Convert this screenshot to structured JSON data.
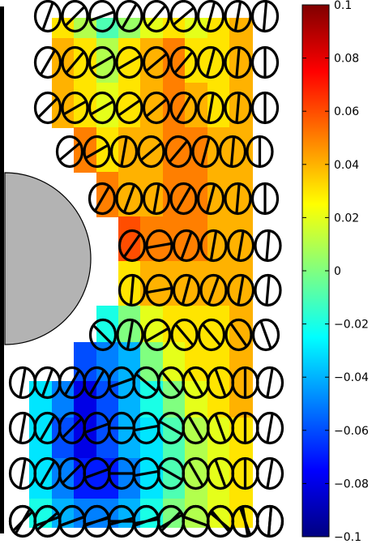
{
  "chart_data": {
    "type": "heatmap",
    "title": "",
    "xlabel": "",
    "ylabel": "",
    "colormap": "jet",
    "colorbar": {
      "min": -0.1,
      "max": 0.1,
      "ticks": [
        0.1,
        0.08,
        0.06,
        0.04,
        0.02,
        0,
        -0.02,
        -0.04,
        -0.06,
        -0.08,
        -0.1
      ],
      "tick_labels": [
        "0.1",
        "0.08",
        "0.06",
        "0.04",
        "0.02",
        "0",
        "−0.02",
        "−0.04",
        "−0.06",
        "−0.08",
        "−0.1"
      ],
      "placement": "right"
    },
    "field_columns": [
      "c1",
      "c2",
      "c3",
      "c4",
      "c5",
      "c6",
      "c7",
      "c8",
      "c9",
      "c10",
      "c11"
    ],
    "field_rows": [
      {
        "row": 1,
        "values": [
          null,
          null,
          0.03,
          0.01,
          -0.01,
          0.005,
          0.02,
          0.03,
          0.02,
          0.03,
          0.04
        ]
      },
      {
        "row": 2,
        "values": [
          null,
          null,
          0.04,
          0.03,
          0.01,
          0.03,
          0.04,
          0.05,
          0.03,
          0.03,
          0.04
        ]
      },
      {
        "row": 3,
        "values": [
          null,
          null,
          0.04,
          0.03,
          0.02,
          0.03,
          0.04,
          0.05,
          0.04,
          0.03,
          0.04
        ]
      },
      {
        "row": 4,
        "values": [
          null,
          null,
          null,
          0.05,
          0.03,
          0.04,
          0.04,
          0.05,
          0.05,
          0.04,
          0.04
        ]
      },
      {
        "row": 5,
        "values": [
          null,
          null,
          null,
          null,
          0.05,
          0.04,
          0.04,
          0.05,
          0.05,
          0.04,
          0.04
        ]
      },
      {
        "row": 6,
        "values": [
          null,
          null,
          null,
          null,
          null,
          0.06,
          0.05,
          0.05,
          0.05,
          0.04,
          0.04
        ]
      },
      {
        "row": 7,
        "values": [
          null,
          null,
          null,
          null,
          null,
          0.03,
          0.04,
          0.04,
          0.04,
          0.04,
          0.04
        ]
      },
      {
        "row": 8,
        "values": [
          null,
          null,
          null,
          null,
          -0.02,
          0.0,
          0.02,
          0.03,
          0.03,
          0.03,
          0.04
        ]
      },
      {
        "row": 9,
        "values": [
          null,
          null,
          null,
          -0.06,
          -0.05,
          -0.04,
          0.0,
          0.02,
          0.03,
          0.03,
          0.04
        ]
      },
      {
        "row": 10,
        "values": [
          null,
          -0.03,
          -0.05,
          -0.08,
          -0.06,
          -0.04,
          -0.02,
          0.0,
          0.02,
          0.03,
          0.04
        ]
      },
      {
        "row": 11,
        "values": [
          null,
          -0.03,
          -0.06,
          -0.08,
          -0.06,
          -0.04,
          -0.03,
          -0.01,
          0.01,
          0.02,
          0.03
        ]
      },
      {
        "row": 12,
        "values": [
          null,
          -0.03,
          -0.05,
          -0.07,
          -0.07,
          -0.05,
          -0.03,
          -0.01,
          0.01,
          0.02,
          0.03
        ]
      },
      {
        "row": 13,
        "values": [
          null,
          -0.02,
          -0.04,
          -0.05,
          -0.05,
          -0.04,
          -0.02,
          0.0,
          0.01,
          0.02,
          0.03
        ]
      }
    ],
    "glyph_rows": [
      {
        "row": 1,
        "orientations_deg": [
          70,
          45,
          20,
          60,
          50,
          40,
          75,
          80,
          85,
          85
        ]
      },
      {
        "row": 2,
        "orientations_deg": [
          60,
          50,
          30,
          30,
          40,
          50,
          75,
          85,
          90,
          90
        ]
      },
      {
        "row": 3,
        "orientations_deg": [
          45,
          30,
          30,
          35,
          40,
          60,
          80,
          85,
          90,
          90
        ]
      },
      {
        "row": 4,
        "orientations_deg": [
          40,
          30,
          80,
          40,
          50,
          75,
          85,
          90,
          90
        ]
      },
      {
        "row": 5,
        "orientations_deg": [
          60,
          70,
          80,
          60,
          75,
          85,
          90,
          90
        ]
      },
      {
        "row": 6,
        "orientations_deg": [
          55,
          10,
          70,
          80,
          80,
          85,
          90
        ]
      },
      {
        "row": 7,
        "orientations_deg": [
          85,
          10,
          75,
          70,
          80,
          85,
          90
        ]
      },
      {
        "row": 8,
        "orientations_deg": [
          135,
          80,
          30,
          130,
          130,
          125,
          110,
          90
        ]
      },
      {
        "row": 9,
        "orientations_deg": [
          80,
          70,
          60,
          60,
          20,
          140,
          130,
          120,
          110,
          90,
          80
        ]
      },
      {
        "row": 10,
        "orientations_deg": [
          80,
          60,
          45,
          20,
          0,
          10,
          150,
          120,
          110,
          90,
          80
        ]
      },
      {
        "row": 11,
        "orientations_deg": [
          80,
          60,
          45,
          20,
          0,
          10,
          150,
          120,
          110,
          90,
          80
        ]
      },
      {
        "row": 12,
        "orientations_deg": [
          60,
          40,
          20,
          20,
          0,
          10,
          30,
          160,
          130,
          100,
          85
        ]
      },
      {
        "row": 13,
        "orientations_deg": [
          45,
          20,
          20,
          15,
          15,
          20,
          45,
          160,
          140,
          110,
          85
        ]
      }
    ]
  }
}
